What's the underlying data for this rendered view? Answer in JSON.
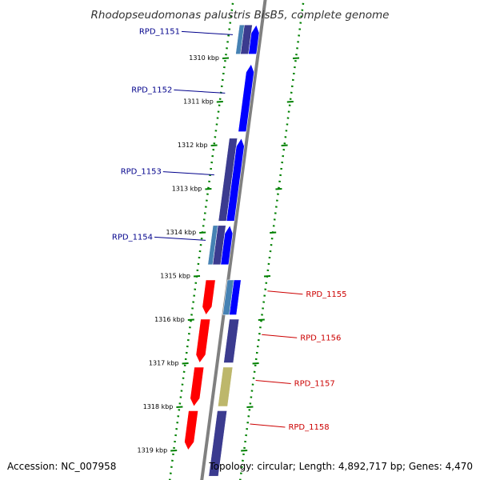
{
  "title": "Rhodopseudomonas palustris BisB5, complete genome",
  "footer": {
    "accession": "Accession: NC_007958",
    "topology": "Topology: circular; Length: 4,892,717 bp; Genes: 4,470"
  },
  "colors": {
    "forward_label": "#00008b",
    "reverse_label": "#cc0000",
    "blue_cds": "#0000ff",
    "navy_cds": "#3b3b8f",
    "teal_cds": "#4682b4",
    "red_cds": "#ff0000",
    "khaki_cds": "#bdb76b",
    "tick_green": "#008000",
    "backbone": "#808080"
  },
  "ticks": [
    {
      "label": "1310 kbp",
      "pos": 1310
    },
    {
      "label": "1311 kbp",
      "pos": 1311
    },
    {
      "label": "1312 kbp",
      "pos": 1312
    },
    {
      "label": "1313 kbp",
      "pos": 1313
    },
    {
      "label": "1314 kbp",
      "pos": 1314
    },
    {
      "label": "1315 kbp",
      "pos": 1315
    },
    {
      "label": "1316 kbp",
      "pos": 1316
    },
    {
      "label": "1317 kbp",
      "pos": 1317
    },
    {
      "label": "1318 kbp",
      "pos": 1318
    },
    {
      "label": "1319 kbp",
      "pos": 1319
    }
  ],
  "genes": [
    {
      "label": "RPD_1151",
      "strand": "forward",
      "start": 1309.25,
      "end": 1309.92,
      "color": "blue_cds"
    },
    {
      "label": "RPD_1152",
      "strand": "forward",
      "start": 1310.15,
      "end": 1311.7,
      "color": "blue_cds"
    },
    {
      "label": "RPD_1153",
      "strand": "forward",
      "start": 1311.85,
      "end": 1313.75,
      "color": "blue_cds"
    },
    {
      "label": "RPD_1154",
      "strand": "forward",
      "start": 1313.85,
      "end": 1314.75,
      "color": "blue_cds"
    },
    {
      "label": "RPD_1155",
      "strand": "reverse",
      "start": 1315.1,
      "end": 1315.9,
      "color": "red_cds"
    },
    {
      "label": "RPD_1156",
      "strand": "reverse",
      "start": 1316.0,
      "end": 1317.0,
      "color": "red_cds"
    },
    {
      "label": "RPD_1157",
      "strand": "reverse",
      "start": 1317.1,
      "end": 1318.0,
      "color": "red_cds"
    },
    {
      "label": "RPD_1158",
      "strand": "reverse",
      "start": 1318.1,
      "end": 1319.0,
      "color": "red_cds"
    }
  ],
  "blocks": [
    {
      "track": "navy",
      "start": 1309.25,
      "end": 1309.92,
      "color": "navy_cds"
    },
    {
      "track": "teal",
      "start": 1309.25,
      "end": 1309.92,
      "color": "teal_cds"
    },
    {
      "track": "navy",
      "start": 1311.85,
      "end": 1313.75,
      "color": "navy_cds"
    },
    {
      "track": "navy",
      "start": 1313.85,
      "end": 1314.75,
      "color": "navy_cds"
    },
    {
      "track": "teal",
      "start": 1313.85,
      "end": 1314.75,
      "color": "teal_cds"
    },
    {
      "track": "navy",
      "start": 1315.1,
      "end": 1315.9,
      "color": "blue_cds"
    },
    {
      "track": "teal",
      "start": 1315.1,
      "end": 1315.9,
      "color": "teal_cds"
    },
    {
      "track": "navy",
      "start": 1316.0,
      "end": 1317.0,
      "color": "navy_cds"
    },
    {
      "track": "navy",
      "start": 1317.1,
      "end": 1318.0,
      "color": "khaki_cds"
    },
    {
      "track": "navy",
      "start": 1318.1,
      "end": 1319.6,
      "color": "navy_cds"
    }
  ]
}
